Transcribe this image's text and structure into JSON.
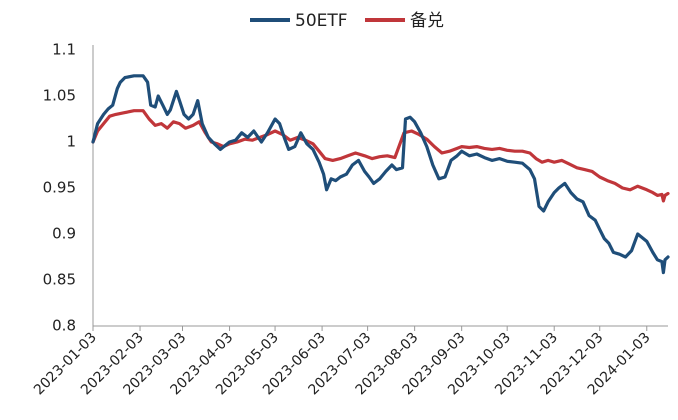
{
  "chart_data": {
    "type": "line",
    "title": "",
    "xlabel": "",
    "ylabel": "",
    "ylim": [
      0.8,
      1.1
    ],
    "y_ticks": [
      "1.1",
      "1.05",
      "1",
      "0.95",
      "0.9",
      "0.85",
      "0.8"
    ],
    "x_ticks": [
      "2023-01-03",
      "2023-02-03",
      "2023-03-03",
      "2023-04-03",
      "2023-05-03",
      "2023-06-03",
      "2023-07-03",
      "2023-08-03",
      "2023-09-03",
      "2023-10-03",
      "2023-11-03",
      "2023-12-03",
      "2024-01-03"
    ],
    "legend_position": "top-center",
    "grid": false,
    "series": [
      {
        "name": "50ETF",
        "color": "#1f4e79",
        "points": [
          [
            "2023-01-03",
            1.0
          ],
          [
            "2023-01-06",
            1.02
          ],
          [
            "2023-01-10",
            1.03
          ],
          [
            "2023-01-13",
            1.036
          ],
          [
            "2023-01-16",
            1.04
          ],
          [
            "2023-01-19",
            1.058
          ],
          [
            "2023-01-21",
            1.065
          ],
          [
            "2023-01-24",
            1.07
          ],
          [
            "2023-01-30",
            1.072
          ],
          [
            "2023-02-05",
            1.072
          ],
          [
            "2023-02-08",
            1.065
          ],
          [
            "2023-02-10",
            1.04
          ],
          [
            "2023-02-13",
            1.038
          ],
          [
            "2023-02-15",
            1.05
          ],
          [
            "2023-02-18",
            1.04
          ],
          [
            "2023-02-21",
            1.03
          ],
          [
            "2023-02-23",
            1.035
          ],
          [
            "2023-02-27",
            1.055
          ],
          [
            "2023-03-01",
            1.045
          ],
          [
            "2023-03-04",
            1.03
          ],
          [
            "2023-03-07",
            1.025
          ],
          [
            "2023-03-10",
            1.03
          ],
          [
            "2023-03-13",
            1.045
          ],
          [
            "2023-03-16",
            1.02
          ],
          [
            "2023-03-20",
            1.005
          ],
          [
            "2023-03-24",
            0.998
          ],
          [
            "2023-03-28",
            0.992
          ],
          [
            "2023-04-03",
            1.0
          ],
          [
            "2023-04-07",
            1.002
          ],
          [
            "2023-04-11",
            1.01
          ],
          [
            "2023-04-15",
            1.005
          ],
          [
            "2023-04-19",
            1.012
          ],
          [
            "2023-04-24",
            1.0
          ],
          [
            "2023-04-28",
            1.01
          ],
          [
            "2023-05-03",
            1.025
          ],
          [
            "2023-05-06",
            1.02
          ],
          [
            "2023-05-09",
            1.005
          ],
          [
            "2023-05-12",
            0.992
          ],
          [
            "2023-05-16",
            0.995
          ],
          [
            "2023-05-20",
            1.01
          ],
          [
            "2023-05-24",
            0.998
          ],
          [
            "2023-05-28",
            0.992
          ],
          [
            "2023-06-01",
            0.978
          ],
          [
            "2023-06-04",
            0.965
          ],
          [
            "2023-06-06",
            0.948
          ],
          [
            "2023-06-09",
            0.96
          ],
          [
            "2023-06-12",
            0.958
          ],
          [
            "2023-06-15",
            0.962
          ],
          [
            "2023-06-19",
            0.965
          ],
          [
            "2023-06-23",
            0.975
          ],
          [
            "2023-06-27",
            0.98
          ],
          [
            "2023-07-01",
            0.968
          ],
          [
            "2023-07-04",
            0.962
          ],
          [
            "2023-07-07",
            0.955
          ],
          [
            "2023-07-11",
            0.96
          ],
          [
            "2023-07-15",
            0.968
          ],
          [
            "2023-07-19",
            0.975
          ],
          [
            "2023-07-22",
            0.97
          ],
          [
            "2023-07-26",
            0.972
          ],
          [
            "2023-07-28",
            1.025
          ],
          [
            "2023-07-31",
            1.027
          ],
          [
            "2023-08-03",
            1.022
          ],
          [
            "2023-08-07",
            1.01
          ],
          [
            "2023-08-11",
            0.995
          ],
          [
            "2023-08-15",
            0.975
          ],
          [
            "2023-08-19",
            0.96
          ],
          [
            "2023-08-23",
            0.962
          ],
          [
            "2023-08-27",
            0.98
          ],
          [
            "2023-08-31",
            0.985
          ],
          [
            "2023-09-03",
            0.99
          ],
          [
            "2023-09-08",
            0.985
          ],
          [
            "2023-09-13",
            0.987
          ],
          [
            "2023-09-18",
            0.983
          ],
          [
            "2023-09-23",
            0.98
          ],
          [
            "2023-09-28",
            0.982
          ],
          [
            "2023-10-03",
            0.979
          ],
          [
            "2023-10-08",
            0.978
          ],
          [
            "2023-10-13",
            0.977
          ],
          [
            "2023-10-18",
            0.97
          ],
          [
            "2023-10-21",
            0.96
          ],
          [
            "2023-10-24",
            0.93
          ],
          [
            "2023-10-27",
            0.925
          ],
          [
            "2023-10-30",
            0.935
          ],
          [
            "2023-11-03",
            0.945
          ],
          [
            "2023-11-06",
            0.95
          ],
          [
            "2023-11-10",
            0.955
          ],
          [
            "2023-11-14",
            0.945
          ],
          [
            "2023-11-18",
            0.938
          ],
          [
            "2023-11-22",
            0.935
          ],
          [
            "2023-11-26",
            0.92
          ],
          [
            "2023-11-30",
            0.915
          ],
          [
            "2023-12-03",
            0.905
          ],
          [
            "2023-12-06",
            0.895
          ],
          [
            "2023-12-09",
            0.89
          ],
          [
            "2023-12-12",
            0.88
          ],
          [
            "2023-12-16",
            0.878
          ],
          [
            "2023-12-20",
            0.875
          ],
          [
            "2023-12-24",
            0.882
          ],
          [
            "2023-12-28",
            0.9
          ],
          [
            "2024-01-03",
            0.892
          ],
          [
            "2024-01-07",
            0.88
          ],
          [
            "2024-01-10",
            0.872
          ],
          [
            "2024-01-13",
            0.87
          ],
          [
            "2024-01-14",
            0.858
          ],
          [
            "2024-01-15",
            0.872
          ],
          [
            "2024-01-17",
            0.875
          ]
        ]
      },
      {
        "name": "备兑",
        "color": "#c0363a",
        "points": [
          [
            "2023-01-03",
            1.0
          ],
          [
            "2023-01-06",
            1.012
          ],
          [
            "2023-01-10",
            1.02
          ],
          [
            "2023-01-14",
            1.028
          ],
          [
            "2023-01-18",
            1.03
          ],
          [
            "2023-01-24",
            1.032
          ],
          [
            "2023-01-30",
            1.034
          ],
          [
            "2023-02-05",
            1.034
          ],
          [
            "2023-02-09",
            1.025
          ],
          [
            "2023-02-13",
            1.018
          ],
          [
            "2023-02-17",
            1.02
          ],
          [
            "2023-02-21",
            1.015
          ],
          [
            "2023-02-25",
            1.022
          ],
          [
            "2023-03-01",
            1.02
          ],
          [
            "2023-03-05",
            1.015
          ],
          [
            "2023-03-10",
            1.018
          ],
          [
            "2023-03-14",
            1.022
          ],
          [
            "2023-03-18",
            1.01
          ],
          [
            "2023-03-22",
            1.0
          ],
          [
            "2023-03-26",
            0.998
          ],
          [
            "2023-03-30",
            0.995
          ],
          [
            "2023-04-03",
            0.998
          ],
          [
            "2023-04-08",
            1.0
          ],
          [
            "2023-04-13",
            1.003
          ],
          [
            "2023-04-18",
            1.002
          ],
          [
            "2023-04-23",
            1.005
          ],
          [
            "2023-04-28",
            1.008
          ],
          [
            "2023-05-03",
            1.012
          ],
          [
            "2023-05-08",
            1.008
          ],
          [
            "2023-05-13",
            1.002
          ],
          [
            "2023-05-18",
            1.005
          ],
          [
            "2023-05-23",
            1.002
          ],
          [
            "2023-05-28",
            0.998
          ],
          [
            "2023-06-01",
            0.99
          ],
          [
            "2023-06-05",
            0.982
          ],
          [
            "2023-06-10",
            0.98
          ],
          [
            "2023-06-15",
            0.982
          ],
          [
            "2023-06-20",
            0.985
          ],
          [
            "2023-06-25",
            0.988
          ],
          [
            "2023-07-01",
            0.985
          ],
          [
            "2023-07-06",
            0.982
          ],
          [
            "2023-07-11",
            0.984
          ],
          [
            "2023-07-16",
            0.985
          ],
          [
            "2023-07-21",
            0.983
          ],
          [
            "2023-07-27",
            1.01
          ],
          [
            "2023-08-01",
            1.012
          ],
          [
            "2023-08-06",
            1.008
          ],
          [
            "2023-08-11",
            1.003
          ],
          [
            "2023-08-16",
            0.995
          ],
          [
            "2023-08-21",
            0.988
          ],
          [
            "2023-08-26",
            0.99
          ],
          [
            "2023-08-31",
            0.993
          ],
          [
            "2023-09-03",
            0.995
          ],
          [
            "2023-09-08",
            0.994
          ],
          [
            "2023-09-13",
            0.995
          ],
          [
            "2023-09-18",
            0.993
          ],
          [
            "2023-09-23",
            0.992
          ],
          [
            "2023-09-28",
            0.993
          ],
          [
            "2023-10-03",
            0.991
          ],
          [
            "2023-10-08",
            0.99
          ],
          [
            "2023-10-13",
            0.99
          ],
          [
            "2023-10-18",
            0.988
          ],
          [
            "2023-10-22",
            0.982
          ],
          [
            "2023-10-26",
            0.978
          ],
          [
            "2023-10-30",
            0.98
          ],
          [
            "2023-11-03",
            0.978
          ],
          [
            "2023-11-08",
            0.98
          ],
          [
            "2023-11-13",
            0.976
          ],
          [
            "2023-11-18",
            0.972
          ],
          [
            "2023-11-23",
            0.97
          ],
          [
            "2023-11-28",
            0.968
          ],
          [
            "2023-12-03",
            0.962
          ],
          [
            "2023-12-08",
            0.958
          ],
          [
            "2023-12-13",
            0.955
          ],
          [
            "2023-12-18",
            0.95
          ],
          [
            "2023-12-23",
            0.948
          ],
          [
            "2023-12-28",
            0.952
          ],
          [
            "2024-01-03",
            0.948
          ],
          [
            "2024-01-07",
            0.945
          ],
          [
            "2024-01-10",
            0.942
          ],
          [
            "2024-01-13",
            0.943
          ],
          [
            "2024-01-14",
            0.936
          ],
          [
            "2024-01-15",
            0.942
          ],
          [
            "2024-01-17",
            0.944
          ]
        ]
      }
    ]
  }
}
